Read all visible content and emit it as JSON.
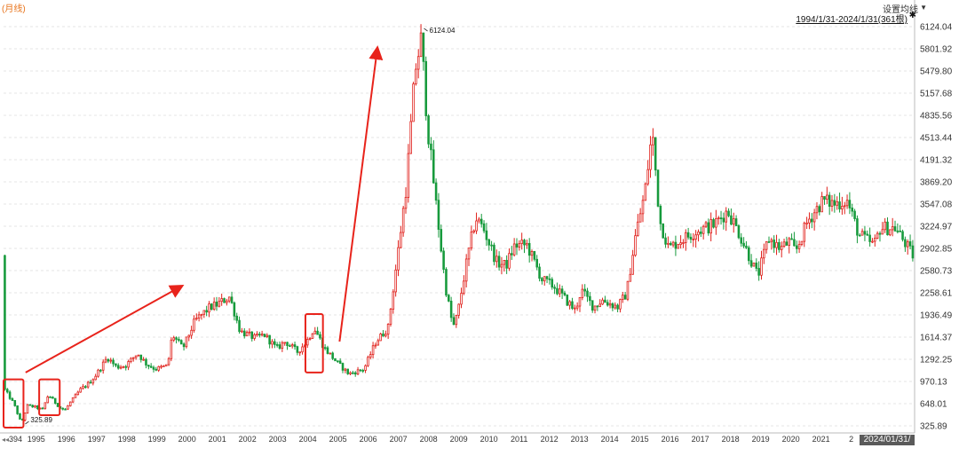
{
  "header": {
    "period_label": "(月线)",
    "ma_setting_label": "设置均线",
    "ma_caret": "▼",
    "date_range": "1994/1/31-2024/1/31(361根)",
    "pin_icon": "pin-icon",
    "scroll_left_icon": "double-left-arrow-icon"
  },
  "footer": {
    "end_date_label": "2024/01/31/三"
  },
  "colors": {
    "up": "#e0201b",
    "down": "#179a3c",
    "grid": "#e4e4e4",
    "axis_text": "#333333",
    "annotation": "#e8231b"
  },
  "chart_data": {
    "type": "candlestick",
    "y_axis": {
      "position": "right",
      "ticks": [
        325.89,
        648.01,
        970.13,
        1292.25,
        1614.37,
        1936.49,
        2258.61,
        2580.73,
        2902.85,
        3224.97,
        3547.08,
        3869.2,
        4191.32,
        4513.44,
        4835.56,
        5157.68,
        5479.8,
        5801.92,
        6124.04
      ],
      "tick_labels": [
        "325.89",
        "648.01",
        "970.13",
        "1292.25",
        "1614.37",
        "1936.49",
        "2258.61",
        "2580.73",
        "2902.85",
        "3224.97",
        "3547.08",
        "3869.20",
        "4191.32",
        "4513.44",
        "4835.56",
        "5157.68",
        "5479.80",
        "5801.92",
        "6124.04"
      ],
      "ylim": [
        325.89,
        6124.04
      ]
    },
    "x_axis": {
      "first_label": "394",
      "year_labels": [
        "1995",
        "1996",
        "1997",
        "1998",
        "1999",
        "2000",
        "2001",
        "2002",
        "2003",
        "2004",
        "2005",
        "2006",
        "2007",
        "2008",
        "2009",
        "2010",
        "2011",
        "2012",
        "2013",
        "2014",
        "2015",
        "2016",
        "2017",
        "2018",
        "2019",
        "2020",
        "2021",
        "2"
      ]
    },
    "grid": true,
    "anchors": [
      {
        "t": 1994.0,
        "v": 850
      },
      {
        "t": 1994.3,
        "v": 650
      },
      {
        "t": 1994.55,
        "v": 360
      },
      {
        "t": 1994.75,
        "v": 620
      },
      {
        "t": 1995.0,
        "v": 600
      },
      {
        "t": 1995.25,
        "v": 560
      },
      {
        "t": 1995.45,
        "v": 780
      },
      {
        "t": 1995.6,
        "v": 700
      },
      {
        "t": 1995.85,
        "v": 580
      },
      {
        "t": 1996.0,
        "v": 560
      },
      {
        "t": 1996.2,
        "v": 680
      },
      {
        "t": 1996.5,
        "v": 850
      },
      {
        "t": 1996.8,
        "v": 950
      },
      {
        "t": 1997.0,
        "v": 1050
      },
      {
        "t": 1997.4,
        "v": 1320
      },
      {
        "t": 1997.7,
        "v": 1180
      },
      {
        "t": 1998.0,
        "v": 1200
      },
      {
        "t": 1998.4,
        "v": 1380
      },
      {
        "t": 1998.7,
        "v": 1220
      },
      {
        "t": 1999.0,
        "v": 1150
      },
      {
        "t": 1999.4,
        "v": 1200
      },
      {
        "t": 1999.55,
        "v": 1650
      },
      {
        "t": 1999.9,
        "v": 1450
      },
      {
        "t": 2000.3,
        "v": 1850
      },
      {
        "t": 2000.8,
        "v": 2050
      },
      {
        "t": 2001.0,
        "v": 2080
      },
      {
        "t": 2001.45,
        "v": 2200
      },
      {
        "t": 2001.8,
        "v": 1700
      },
      {
        "t": 2002.3,
        "v": 1600
      },
      {
        "t": 2002.6,
        "v": 1650
      },
      {
        "t": 2003.0,
        "v": 1450
      },
      {
        "t": 2003.3,
        "v": 1550
      },
      {
        "t": 2003.7,
        "v": 1400
      },
      {
        "t": 2004.0,
        "v": 1550
      },
      {
        "t": 2004.25,
        "v": 1750
      },
      {
        "t": 2004.6,
        "v": 1450
      },
      {
        "t": 2005.0,
        "v": 1250
      },
      {
        "t": 2005.4,
        "v": 1080
      },
      {
        "t": 2005.9,
        "v": 1150
      },
      {
        "t": 2006.3,
        "v": 1550
      },
      {
        "t": 2006.7,
        "v": 1750
      },
      {
        "t": 2007.0,
        "v": 2750
      },
      {
        "t": 2007.3,
        "v": 3800
      },
      {
        "t": 2007.6,
        "v": 5500
      },
      {
        "t": 2007.8,
        "v": 5950
      },
      {
        "t": 2008.0,
        "v": 4700
      },
      {
        "t": 2008.3,
        "v": 3500
      },
      {
        "t": 2008.6,
        "v": 2350
      },
      {
        "t": 2008.85,
        "v": 1750
      },
      {
        "t": 2009.0,
        "v": 1950
      },
      {
        "t": 2009.3,
        "v": 2700
      },
      {
        "t": 2009.6,
        "v": 3350
      },
      {
        "t": 2009.85,
        "v": 3200
      },
      {
        "t": 2010.3,
        "v": 2700
      },
      {
        "t": 2010.6,
        "v": 2650
      },
      {
        "t": 2010.9,
        "v": 2950
      },
      {
        "t": 2011.3,
        "v": 2950
      },
      {
        "t": 2011.8,
        "v": 2450
      },
      {
        "t": 2012.2,
        "v": 2350
      },
      {
        "t": 2012.6,
        "v": 2150
      },
      {
        "t": 2012.9,
        "v": 2000
      },
      {
        "t": 2013.1,
        "v": 2300
      },
      {
        "t": 2013.5,
        "v": 2050
      },
      {
        "t": 2013.8,
        "v": 2150
      },
      {
        "t": 2014.3,
        "v": 2050
      },
      {
        "t": 2014.6,
        "v": 2250
      },
      {
        "t": 2014.9,
        "v": 3100
      },
      {
        "t": 2015.2,
        "v": 3700
      },
      {
        "t": 2015.45,
        "v": 4600
      },
      {
        "t": 2015.7,
        "v": 3300
      },
      {
        "t": 2016.0,
        "v": 2900
      },
      {
        "t": 2016.3,
        "v": 3000
      },
      {
        "t": 2016.9,
        "v": 3150
      },
      {
        "t": 2017.5,
        "v": 3250
      },
      {
        "t": 2017.95,
        "v": 3450
      },
      {
        "t": 2018.3,
        "v": 3150
      },
      {
        "t": 2018.7,
        "v": 2750
      },
      {
        "t": 2018.95,
        "v": 2500
      },
      {
        "t": 2019.3,
        "v": 3050
      },
      {
        "t": 2019.7,
        "v": 2900
      },
      {
        "t": 2020.0,
        "v": 3000
      },
      {
        "t": 2020.2,
        "v": 2850
      },
      {
        "t": 2020.6,
        "v": 3300
      },
      {
        "t": 2021.1,
        "v": 3600
      },
      {
        "t": 2021.5,
        "v": 3550
      },
      {
        "t": 2021.9,
        "v": 3600
      },
      {
        "t": 2022.3,
        "v": 3100
      },
      {
        "t": 2022.8,
        "v": 2950
      },
      {
        "t": 2023.0,
        "v": 3200
      },
      {
        "t": 2023.5,
        "v": 3200
      },
      {
        "t": 2023.8,
        "v": 3000
      },
      {
        "t": 2024.08,
        "v": 2800
      }
    ],
    "labeled_points": [
      {
        "date": 2007.79,
        "value": 6124.04,
        "label": "6124.04"
      },
      {
        "date": 1994.58,
        "value": 325.89,
        "label": "325.89"
      }
    ],
    "annotations": [
      {
        "type": "box",
        "from": 1993.92,
        "to": 1994.58,
        "low": 300,
        "high": 1000
      },
      {
        "type": "box",
        "from": 1995.1,
        "to": 1995.78,
        "low": 480,
        "high": 1000
      },
      {
        "type": "box",
        "from": 2003.92,
        "to": 2004.5,
        "low": 1100,
        "high": 1950
      },
      {
        "type": "arrow",
        "from": [
          1994.65,
          1100
        ],
        "to": [
          1999.8,
          2350
        ]
      },
      {
        "type": "arrow",
        "from": [
          2005.05,
          1550
        ],
        "to": [
          2006.3,
          5800
        ]
      }
    ]
  }
}
